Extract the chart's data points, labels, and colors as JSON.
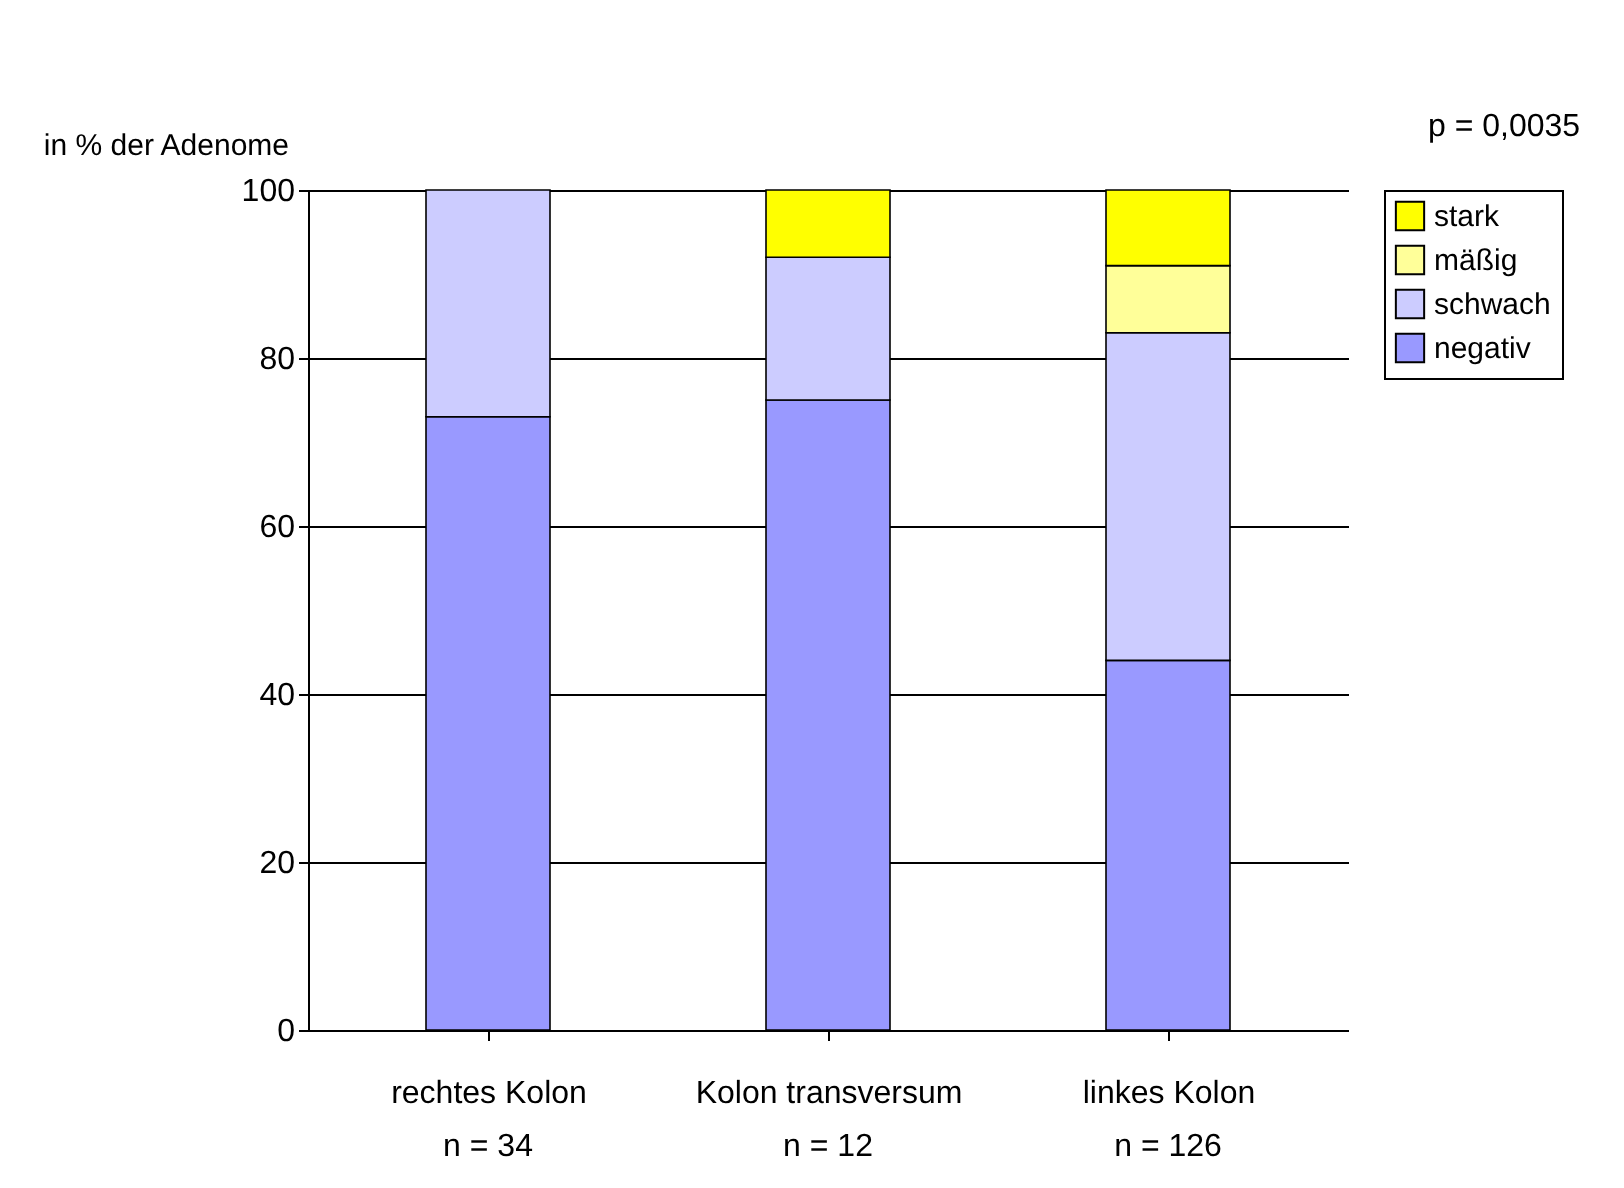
{
  "chart_data": {
    "type": "bar",
    "stacked": true,
    "ylabel": "in % der Adenome",
    "categories": [
      "rechtes Kolon",
      "Kolon transversum",
      "linkes Kolon"
    ],
    "series": [
      {
        "name": "negativ",
        "color": "#9999ff",
        "values": [
          73,
          75,
          44
        ]
      },
      {
        "name": "schwach",
        "color": "#ccccff",
        "values": [
          27,
          17,
          39
        ]
      },
      {
        "name": "mäßig",
        "color": "#ffff99",
        "values": [
          null,
          null,
          8
        ]
      },
      {
        "name": "stark",
        "color": "#ffff00",
        "values": [
          null,
          8,
          9
        ]
      }
    ],
    "ylim": [
      0,
      100
    ],
    "yticks": [
      0,
      20,
      40,
      60,
      80,
      100
    ],
    "grid": "y",
    "legend": "right",
    "annotations": [
      "p = 0,0035",
      "n = 34",
      "n = 12",
      "n = 126"
    ]
  }
}
